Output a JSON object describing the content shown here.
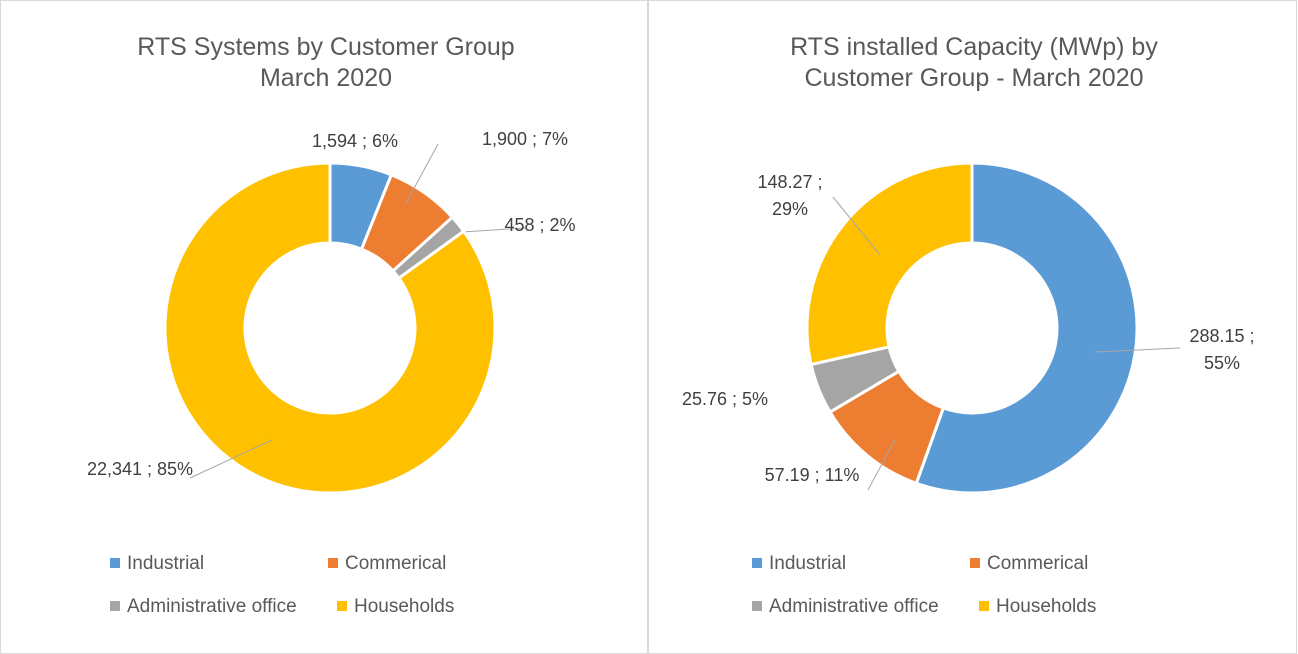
{
  "chart_data": [
    {
      "type": "pie",
      "title": [
        "RTS Systems by Customer Group",
        "March 2020"
      ],
      "categories": [
        "Industrial",
        "Commerical",
        "Administrative office",
        "Households"
      ],
      "values": [
        1594,
        1900,
        458,
        22341
      ],
      "value_labels": [
        "1,594 ; 6%",
        "1,900 ; 7%",
        "458 ; 2%",
        "22,341 ; 85%"
      ],
      "colors": [
        "#5b9bd5",
        "#ed7d31",
        "#a5a5a5",
        "#ffc000"
      ]
    },
    {
      "type": "pie",
      "title": [
        "RTS installed Capacity (MWp) by",
        "Customer Group - March 2020"
      ],
      "categories": [
        "Industrial",
        "Commerical",
        "Administrative office",
        "Households"
      ],
      "values": [
        288.15,
        57.19,
        25.76,
        148.27
      ],
      "value_labels": [
        "288.15 ; 55%",
        "57.19 ; 11%",
        "25.76 ; 5%",
        "148.27 ; 29%"
      ],
      "colors": [
        "#5b9bd5",
        "#ed7d31",
        "#a5a5a5",
        "#ffc000"
      ]
    }
  ]
}
